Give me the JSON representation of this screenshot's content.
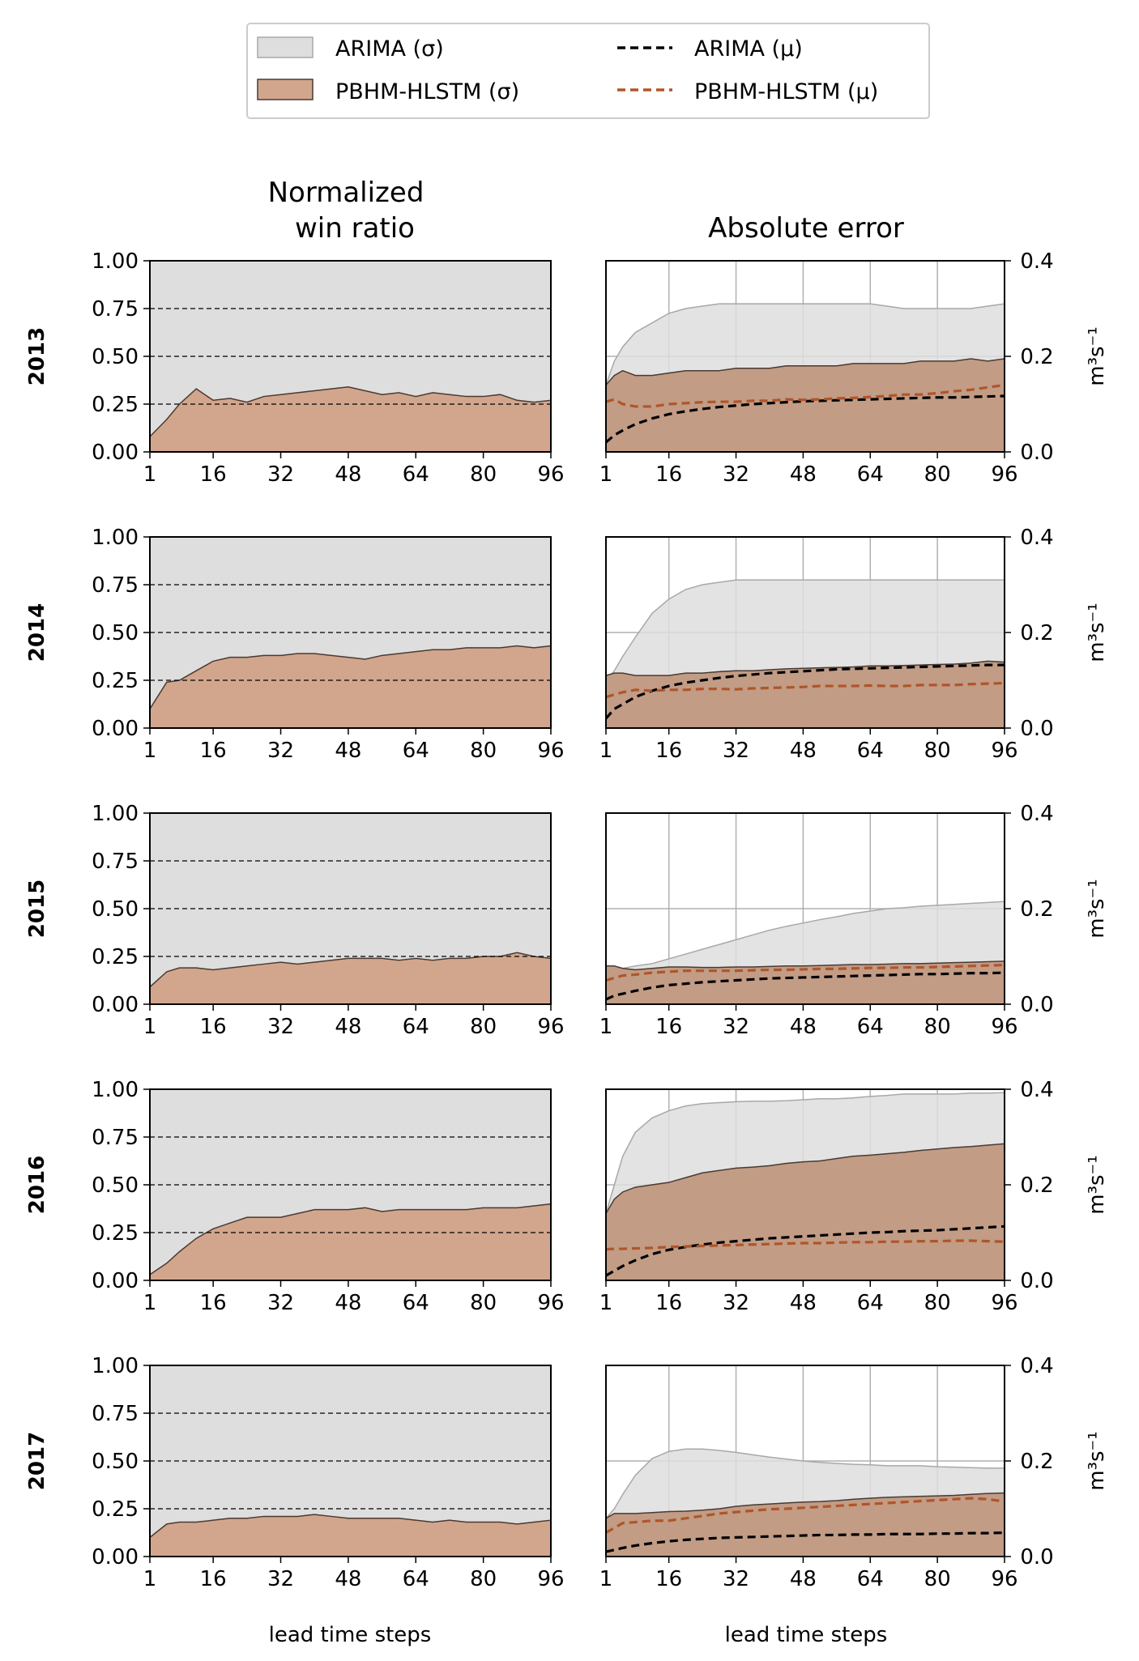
{
  "legend": {
    "items": [
      {
        "label": "ARIMA (σ)",
        "kind": "patch",
        "color": "#dedede"
      },
      {
        "label": "PBHM-HLSTM (σ)",
        "kind": "patch",
        "color": "#d2a68d"
      },
      {
        "label": "ARIMA (μ)",
        "kind": "line",
        "color": "#000000"
      },
      {
        "label": "PBHM-HLSTM (μ)",
        "kind": "line",
        "color": "#b0552a"
      }
    ]
  },
  "columns": {
    "win_ratio_title_line1": "Normalized",
    "win_ratio_title_line2": "win ratio",
    "abs_error_title": "Absolute error"
  },
  "xlabel": "lead time steps",
  "ylabel_right": "m³s⁻¹",
  "colors": {
    "arima_fill": "#dedede",
    "arima_edge": "#a8a8a8",
    "hlstm_fill": "#d2a68d",
    "hlstm_fill_over": "#c09880",
    "hlstm_edge": "#4a3a33",
    "arima_line": "#000000",
    "hlstm_line": "#b0552a",
    "grid": "#b0b0b0"
  },
  "chart_data": [
    {
      "type": "area",
      "title": "Normalized win ratio",
      "xticks": [
        1,
        16,
        32,
        48,
        64,
        80,
        96
      ],
      "ylim": [
        0,
        1
      ],
      "yticks": [
        "0.00",
        "0.25",
        "0.50",
        "0.75",
        "1.00"
      ],
      "xlabel": "lead time steps",
      "grid": "dashed horizontal at 0.25, 0.50, 0.75",
      "years": [
        "2013",
        "2014",
        "2015",
        "2016",
        "2017"
      ],
      "x": [
        1,
        5,
        8,
        12,
        16,
        20,
        24,
        28,
        32,
        36,
        40,
        44,
        48,
        52,
        56,
        60,
        64,
        68,
        72,
        76,
        80,
        84,
        88,
        92,
        96
      ],
      "series": [
        {
          "name": "PBHM-HLSTM (σ)",
          "year": "2013",
          "values": [
            0.08,
            0.17,
            0.25,
            0.33,
            0.27,
            0.28,
            0.26,
            0.29,
            0.3,
            0.31,
            0.32,
            0.33,
            0.34,
            0.32,
            0.3,
            0.31,
            0.29,
            0.31,
            0.3,
            0.29,
            0.29,
            0.3,
            0.27,
            0.26,
            0.27
          ]
        },
        {
          "name": "PBHM-HLSTM (σ)",
          "year": "2014",
          "values": [
            0.1,
            0.24,
            0.25,
            0.3,
            0.35,
            0.37,
            0.37,
            0.38,
            0.38,
            0.39,
            0.39,
            0.38,
            0.37,
            0.36,
            0.38,
            0.39,
            0.4,
            0.41,
            0.41,
            0.42,
            0.42,
            0.42,
            0.43,
            0.42,
            0.43
          ]
        },
        {
          "name": "PBHM-HLSTM (σ)",
          "year": "2015",
          "values": [
            0.09,
            0.17,
            0.19,
            0.19,
            0.18,
            0.19,
            0.2,
            0.21,
            0.22,
            0.21,
            0.22,
            0.23,
            0.24,
            0.24,
            0.24,
            0.23,
            0.24,
            0.23,
            0.24,
            0.24,
            0.25,
            0.25,
            0.27,
            0.25,
            0.24
          ]
        },
        {
          "name": "PBHM-HLSTM (σ)",
          "year": "2016",
          "values": [
            0.03,
            0.09,
            0.15,
            0.22,
            0.27,
            0.3,
            0.33,
            0.33,
            0.33,
            0.35,
            0.37,
            0.37,
            0.37,
            0.38,
            0.36,
            0.37,
            0.37,
            0.37,
            0.37,
            0.37,
            0.38,
            0.38,
            0.38,
            0.39,
            0.4
          ]
        },
        {
          "name": "PBHM-HLSTM (σ)",
          "year": "2017",
          "values": [
            0.1,
            0.17,
            0.18,
            0.18,
            0.19,
            0.2,
            0.2,
            0.21,
            0.21,
            0.21,
            0.22,
            0.21,
            0.2,
            0.2,
            0.2,
            0.2,
            0.19,
            0.18,
            0.19,
            0.18,
            0.18,
            0.18,
            0.17,
            0.18,
            0.19
          ]
        }
      ]
    },
    {
      "type": "area",
      "title": "Absolute error",
      "xticks": [
        1,
        16,
        32,
        48,
        64,
        80,
        96
      ],
      "ylim": [
        0,
        0.4
      ],
      "yticks": [
        "0.0",
        "0.2",
        "0.4"
      ],
      "ylabel": "m³s⁻¹",
      "xlabel": "lead time steps",
      "grid": "solid gray, vertical at ticks, horizontal at 0.2",
      "years": [
        "2013",
        "2014",
        "2015",
        "2016",
        "2017"
      ],
      "x": [
        1,
        3,
        5,
        8,
        12,
        16,
        20,
        24,
        28,
        32,
        36,
        40,
        44,
        48,
        52,
        56,
        60,
        64,
        68,
        72,
        76,
        80,
        84,
        88,
        92,
        96
      ],
      "series": [
        {
          "name": "ARIMA (σ)",
          "year": "2013",
          "values": [
            0.14,
            0.19,
            0.22,
            0.25,
            0.27,
            0.29,
            0.3,
            0.305,
            0.31,
            0.31,
            0.31,
            0.31,
            0.31,
            0.31,
            0.31,
            0.31,
            0.31,
            0.31,
            0.305,
            0.3,
            0.3,
            0.3,
            0.3,
            0.3,
            0.305,
            0.31
          ]
        },
        {
          "name": "PBHM-HLSTM (σ)",
          "year": "2013",
          "values": [
            0.14,
            0.16,
            0.17,
            0.16,
            0.16,
            0.165,
            0.17,
            0.17,
            0.17,
            0.175,
            0.175,
            0.175,
            0.18,
            0.18,
            0.18,
            0.18,
            0.185,
            0.185,
            0.185,
            0.185,
            0.19,
            0.19,
            0.19,
            0.195,
            0.19,
            0.195
          ]
        },
        {
          "name": "ARIMA (μ)",
          "year": "2013",
          "values": [
            0.02,
            0.035,
            0.045,
            0.058,
            0.07,
            0.079,
            0.085,
            0.09,
            0.094,
            0.097,
            0.1,
            0.102,
            0.104,
            0.106,
            0.107,
            0.108,
            0.109,
            0.11,
            0.111,
            0.112,
            0.113,
            0.114,
            0.114,
            0.115,
            0.116,
            0.117
          ]
        },
        {
          "name": "PBHM-HLSTM (μ)",
          "year": "2013",
          "values": [
            0.105,
            0.11,
            0.1,
            0.095,
            0.095,
            0.1,
            0.102,
            0.104,
            0.105,
            0.105,
            0.107,
            0.107,
            0.11,
            0.109,
            0.11,
            0.112,
            0.113,
            0.115,
            0.117,
            0.12,
            0.12,
            0.123,
            0.127,
            0.13,
            0.135,
            0.14
          ]
        },
        {
          "name": "ARIMA (σ)",
          "year": "2014",
          "values": [
            0.1,
            0.12,
            0.15,
            0.19,
            0.24,
            0.27,
            0.29,
            0.3,
            0.305,
            0.31,
            0.31,
            0.31,
            0.31,
            0.31,
            0.31,
            0.31,
            0.31,
            0.31,
            0.31,
            0.31,
            0.31,
            0.31,
            0.31,
            0.31,
            0.31,
            0.31
          ]
        },
        {
          "name": "PBHM-HLSTM (σ)",
          "year": "2014",
          "values": [
            0.11,
            0.115,
            0.115,
            0.11,
            0.11,
            0.11,
            0.115,
            0.115,
            0.118,
            0.12,
            0.12,
            0.122,
            0.124,
            0.125,
            0.126,
            0.127,
            0.128,
            0.13,
            0.13,
            0.131,
            0.132,
            0.133,
            0.134,
            0.136,
            0.14,
            0.138
          ]
        },
        {
          "name": "ARIMA (μ)",
          "year": "2014",
          "values": [
            0.02,
            0.04,
            0.05,
            0.065,
            0.078,
            0.088,
            0.095,
            0.1,
            0.105,
            0.109,
            0.112,
            0.115,
            0.117,
            0.119,
            0.121,
            0.123,
            0.124,
            0.125,
            0.126,
            0.127,
            0.128,
            0.129,
            0.13,
            0.131,
            0.132,
            0.132
          ]
        },
        {
          "name": "PBHM-HLSTM (μ)",
          "year": "2014",
          "values": [
            0.065,
            0.07,
            0.075,
            0.08,
            0.078,
            0.08,
            0.08,
            0.082,
            0.082,
            0.081,
            0.083,
            0.084,
            0.085,
            0.086,
            0.088,
            0.088,
            0.088,
            0.089,
            0.088,
            0.088,
            0.09,
            0.09,
            0.09,
            0.092,
            0.093,
            0.094
          ]
        },
        {
          "name": "ARIMA (σ)",
          "year": "2015",
          "values": [
            0.065,
            0.075,
            0.075,
            0.08,
            0.085,
            0.095,
            0.105,
            0.115,
            0.125,
            0.135,
            0.145,
            0.155,
            0.163,
            0.17,
            0.177,
            0.183,
            0.19,
            0.195,
            0.2,
            0.202,
            0.205,
            0.207,
            0.209,
            0.211,
            0.213,
            0.215
          ]
        },
        {
          "name": "PBHM-HLSTM (σ)",
          "year": "2015",
          "values": [
            0.08,
            0.08,
            0.075,
            0.072,
            0.075,
            0.078,
            0.078,
            0.077,
            0.077,
            0.078,
            0.078,
            0.079,
            0.08,
            0.08,
            0.081,
            0.082,
            0.083,
            0.083,
            0.084,
            0.085,
            0.085,
            0.086,
            0.087,
            0.088,
            0.089,
            0.09
          ]
        },
        {
          "name": "ARIMA (μ)",
          "year": "2015",
          "values": [
            0.01,
            0.018,
            0.022,
            0.028,
            0.035,
            0.04,
            0.043,
            0.046,
            0.048,
            0.05,
            0.052,
            0.054,
            0.055,
            0.056,
            0.057,
            0.058,
            0.059,
            0.06,
            0.061,
            0.062,
            0.063,
            0.063,
            0.064,
            0.065,
            0.065,
            0.066
          ]
        },
        {
          "name": "PBHM-HLSTM (μ)",
          "year": "2015",
          "values": [
            0.05,
            0.055,
            0.06,
            0.062,
            0.066,
            0.068,
            0.07,
            0.07,
            0.07,
            0.07,
            0.071,
            0.072,
            0.072,
            0.073,
            0.074,
            0.074,
            0.075,
            0.076,
            0.076,
            0.077,
            0.077,
            0.078,
            0.079,
            0.08,
            0.081,
            0.082
          ]
        },
        {
          "name": "ARIMA (σ)",
          "year": "2016",
          "values": [
            0.14,
            0.2,
            0.26,
            0.31,
            0.34,
            0.355,
            0.365,
            0.37,
            0.372,
            0.374,
            0.375,
            0.375,
            0.376,
            0.378,
            0.38,
            0.38,
            0.382,
            0.385,
            0.387,
            0.39,
            0.39,
            0.39,
            0.39,
            0.392,
            0.392,
            0.393
          ]
        },
        {
          "name": "PBHM-HLSTM (σ)",
          "year": "2016",
          "values": [
            0.14,
            0.17,
            0.185,
            0.195,
            0.2,
            0.205,
            0.215,
            0.225,
            0.23,
            0.235,
            0.237,
            0.24,
            0.245,
            0.248,
            0.25,
            0.255,
            0.26,
            0.262,
            0.265,
            0.268,
            0.272,
            0.275,
            0.278,
            0.28,
            0.283,
            0.286
          ]
        },
        {
          "name": "ARIMA (μ)",
          "year": "2016",
          "values": [
            0.01,
            0.02,
            0.03,
            0.042,
            0.055,
            0.064,
            0.07,
            0.075,
            0.079,
            0.082,
            0.085,
            0.088,
            0.09,
            0.092,
            0.094,
            0.096,
            0.098,
            0.1,
            0.101,
            0.103,
            0.104,
            0.105,
            0.107,
            0.109,
            0.111,
            0.113
          ]
        },
        {
          "name": "PBHM-HLSTM (μ)",
          "year": "2016",
          "values": [
            0.065,
            0.066,
            0.066,
            0.067,
            0.068,
            0.07,
            0.071,
            0.072,
            0.073,
            0.074,
            0.075,
            0.076,
            0.077,
            0.078,
            0.078,
            0.079,
            0.08,
            0.08,
            0.081,
            0.081,
            0.082,
            0.082,
            0.083,
            0.083,
            0.082,
            0.081
          ]
        },
        {
          "name": "ARIMA (σ)",
          "year": "2017",
          "values": [
            0.08,
            0.1,
            0.13,
            0.17,
            0.205,
            0.22,
            0.225,
            0.225,
            0.222,
            0.218,
            0.213,
            0.208,
            0.204,
            0.2,
            0.197,
            0.195,
            0.193,
            0.192,
            0.19,
            0.19,
            0.19,
            0.188,
            0.187,
            0.186,
            0.185,
            0.185
          ]
        },
        {
          "name": "PBHM-HLSTM (σ)",
          "year": "2017",
          "values": [
            0.08,
            0.09,
            0.09,
            0.09,
            0.092,
            0.094,
            0.095,
            0.097,
            0.1,
            0.105,
            0.108,
            0.11,
            0.112,
            0.114,
            0.115,
            0.117,
            0.12,
            0.122,
            0.124,
            0.125,
            0.126,
            0.127,
            0.128,
            0.13,
            0.132,
            0.133
          ]
        },
        {
          "name": "ARIMA (μ)",
          "year": "2017",
          "values": [
            0.01,
            0.014,
            0.018,
            0.023,
            0.028,
            0.032,
            0.035,
            0.037,
            0.039,
            0.04,
            0.041,
            0.042,
            0.043,
            0.044,
            0.045,
            0.045,
            0.046,
            0.046,
            0.047,
            0.047,
            0.047,
            0.048,
            0.048,
            0.049,
            0.049,
            0.05
          ]
        },
        {
          "name": "PBHM-HLSTM (μ)",
          "year": "2017",
          "values": [
            0.05,
            0.06,
            0.07,
            0.072,
            0.075,
            0.075,
            0.08,
            0.085,
            0.09,
            0.093,
            0.096,
            0.099,
            0.1,
            0.102,
            0.104,
            0.106,
            0.108,
            0.11,
            0.112,
            0.114,
            0.116,
            0.118,
            0.12,
            0.122,
            0.12,
            0.115
          ]
        }
      ]
    }
  ]
}
